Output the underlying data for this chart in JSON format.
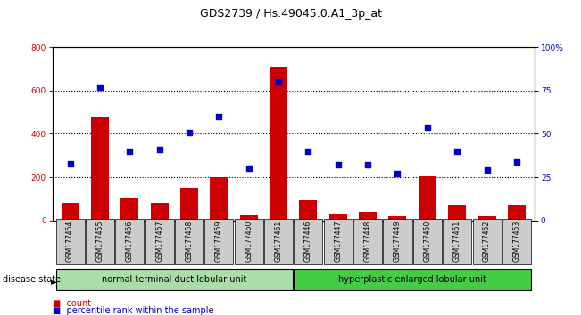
{
  "title": "GDS2739 / Hs.49045.0.A1_3p_at",
  "samples": [
    "GSM177454",
    "GSM177455",
    "GSM177456",
    "GSM177457",
    "GSM177458",
    "GSM177459",
    "GSM177460",
    "GSM177461",
    "GSM177446",
    "GSM177447",
    "GSM177448",
    "GSM177449",
    "GSM177450",
    "GSM177451",
    "GSM177452",
    "GSM177453"
  ],
  "counts": [
    80,
    480,
    100,
    80,
    150,
    200,
    25,
    710,
    95,
    30,
    40,
    20,
    205,
    75,
    20,
    75
  ],
  "percentiles": [
    33,
    77,
    40,
    41,
    51,
    60,
    30,
    80,
    40,
    32,
    32,
    27,
    54,
    40,
    29,
    34
  ],
  "bar_color": "#cc0000",
  "dot_color": "#0000cc",
  "ylim_left": [
    0,
    800
  ],
  "ylim_right": [
    0,
    100
  ],
  "yticks_left": [
    0,
    200,
    400,
    600,
    800
  ],
  "yticks_right": [
    0,
    25,
    50,
    75,
    100
  ],
  "yticklabels_right": [
    "0",
    "25",
    "50",
    "75",
    "100%"
  ],
  "group1_label": "normal terminal duct lobular unit",
  "group2_label": "hyperplastic enlarged lobular unit",
  "group1_count": 8,
  "group2_count": 8,
  "disease_state_label": "disease state",
  "legend_count_label": "count",
  "legend_pct_label": "percentile rank within the sample",
  "background_color": "#ffffff",
  "plot_bg_color": "#ffffff",
  "group1_bg": "#aaddaa",
  "group2_bg": "#44cc44",
  "xticklabel_bg": "#cccccc",
  "title_fontsize": 9,
  "tick_fontsize": 6.5,
  "label_fontsize": 7
}
